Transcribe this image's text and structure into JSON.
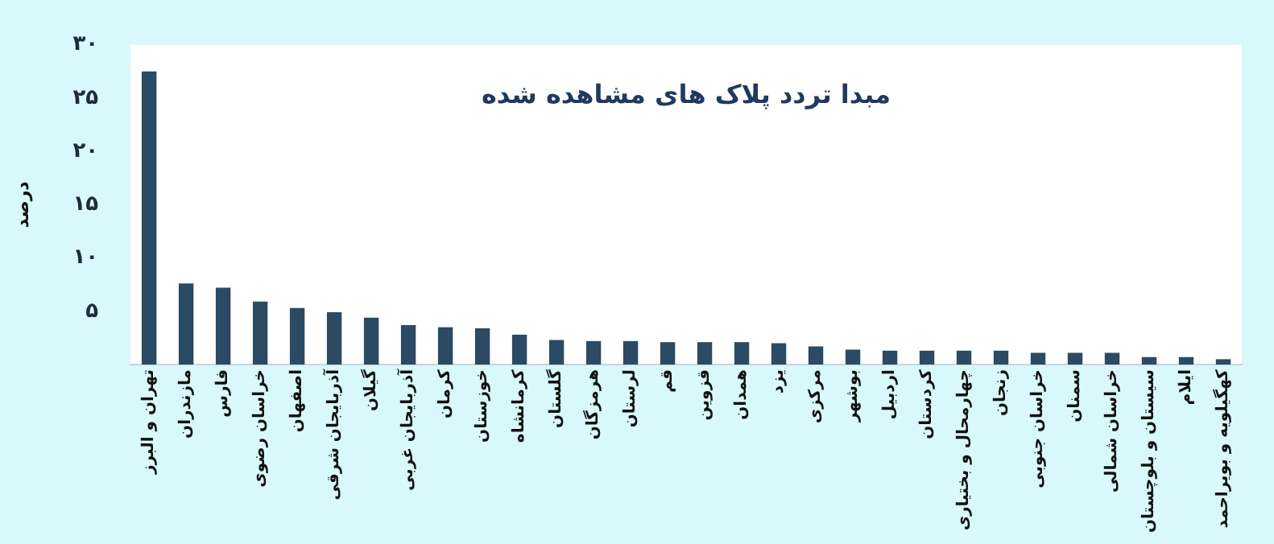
{
  "chart_data": {
    "type": "bar",
    "title": "مبدا تردد پلاک های مشاهده شده",
    "ylabel": "درصد",
    "categories": [
      "تهران و البرز",
      "مازندران",
      "فارس",
      "خراسان رضوی",
      "اصفهان",
      "آذربایجان شرقی",
      "گیلان",
      "آذربایجان غربی",
      "کرمان",
      "خوزستان",
      "کرمانشاه",
      "گلستان",
      "هرمزگان",
      "لرستان",
      "قم",
      "قزوین",
      "همدان",
      "یزد",
      "مرکزی",
      "بوشهر",
      "اردبیل",
      "کردستان",
      "چهارمحال و بختیاری",
      "زنجان",
      "خراسان جنوبی",
      "سمنان",
      "خراسان شمالی",
      "سیستان و بلوچستان",
      "ایلام",
      "کهگیلویه و بویراحمد"
    ],
    "values": [
      27.5,
      7.6,
      7.2,
      5.9,
      5.3,
      4.9,
      4.4,
      3.7,
      3.5,
      3.4,
      2.8,
      2.3,
      2.2,
      2.2,
      2.1,
      2.1,
      2.1,
      2.0,
      1.7,
      1.4,
      1.3,
      1.3,
      1.3,
      1.3,
      1.1,
      1.1,
      1.1,
      0.7,
      0.7,
      0.5
    ],
    "color": "#2b4a63",
    "ylim": [
      0,
      30
    ],
    "yticks": [
      {
        "value": 5,
        "label": "۵"
      },
      {
        "value": 10,
        "label": "۱۰"
      },
      {
        "value": 15,
        "label": "۱۵"
      },
      {
        "value": 20,
        "label": "۲۰"
      },
      {
        "value": 25,
        "label": "۲۵"
      },
      {
        "value": 30,
        "label": "۳۰"
      }
    ],
    "grid": false,
    "legend": false
  }
}
